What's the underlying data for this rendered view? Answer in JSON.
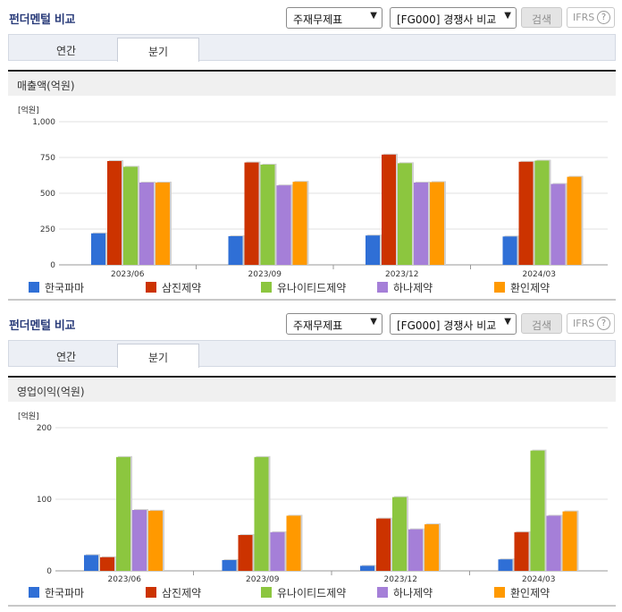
{
  "panels": [
    {
      "title": "펀더멘털 비교",
      "statement_select": "주재무제표",
      "peer_select": "[FG000] 경쟁사 비교",
      "search_label": "검색",
      "ifrs_label": "IFRS",
      "help_glyph": "?",
      "tabs": [
        {
          "label": "연간",
          "active": false
        },
        {
          "label": "분기",
          "active": true
        }
      ],
      "chart_heading": "매출액(억원)",
      "unit_label": "[억원]"
    },
    {
      "title": "펀더멘털 비교",
      "statement_select": "주재무제표",
      "peer_select": "[FG000] 경쟁사 비교",
      "search_label": "검색",
      "ifrs_label": "IFRS",
      "help_glyph": "?",
      "tabs": [
        {
          "label": "연간",
          "active": false
        },
        {
          "label": "분기",
          "active": true
        }
      ],
      "chart_heading": "영업이익(억원)",
      "unit_label": "[억원]"
    }
  ],
  "icons": {
    "dropdown": "chevron-down-icon",
    "help": "question-circle-icon"
  },
  "chart_data": [
    {
      "type": "bar",
      "title": "매출액(억원)",
      "ylabel": "[억원]",
      "ylim": [
        0,
        1000
      ],
      "yticks": [
        0,
        250,
        500,
        750,
        1000
      ],
      "ytick_labels": [
        "0",
        "250",
        "500",
        "750",
        "1,000"
      ],
      "categories": [
        "2023/06",
        "2023/09",
        "2023/12",
        "2024/03"
      ],
      "grid": true,
      "legend": "bottom",
      "series": [
        {
          "name": "한국파마",
          "color": "#2f6fd6",
          "values": [
            220,
            200,
            205,
            198
          ]
        },
        {
          "name": "삼진제약",
          "color": "#cc3300",
          "values": [
            725,
            715,
            770,
            720
          ]
        },
        {
          "name": "유나이티드제약",
          "color": "#8cc63f",
          "values": [
            685,
            700,
            710,
            728
          ]
        },
        {
          "name": "하나제약",
          "color": "#a57fd8",
          "values": [
            575,
            555,
            575,
            565
          ]
        },
        {
          "name": "환인제약",
          "color": "#ff9900",
          "values": [
            575,
            580,
            578,
            615
          ]
        }
      ]
    },
    {
      "type": "bar",
      "title": "영업이익(억원)",
      "ylabel": "[억원]",
      "ylim": [
        0,
        200
      ],
      "yticks": [
        0,
        100,
        200
      ],
      "ytick_labels": [
        "0",
        "100",
        "200"
      ],
      "categories": [
        "2023/06",
        "2023/09",
        "2023/12",
        "2024/03"
      ],
      "grid": true,
      "legend": "bottom",
      "series": [
        {
          "name": "한국파마",
          "color": "#2f6fd6",
          "values": [
            22,
            15,
            7,
            16
          ]
        },
        {
          "name": "삼진제약",
          "color": "#cc3300",
          "values": [
            19,
            50,
            73,
            54
          ]
        },
        {
          "name": "유나이티드제약",
          "color": "#8cc63f",
          "values": [
            159,
            159,
            103,
            168
          ]
        },
        {
          "name": "하나제약",
          "color": "#a57fd8",
          "values": [
            85,
            54,
            58,
            77
          ]
        },
        {
          "name": "환인제약",
          "color": "#ff9900",
          "values": [
            84,
            77,
            65,
            83
          ]
        }
      ]
    }
  ]
}
